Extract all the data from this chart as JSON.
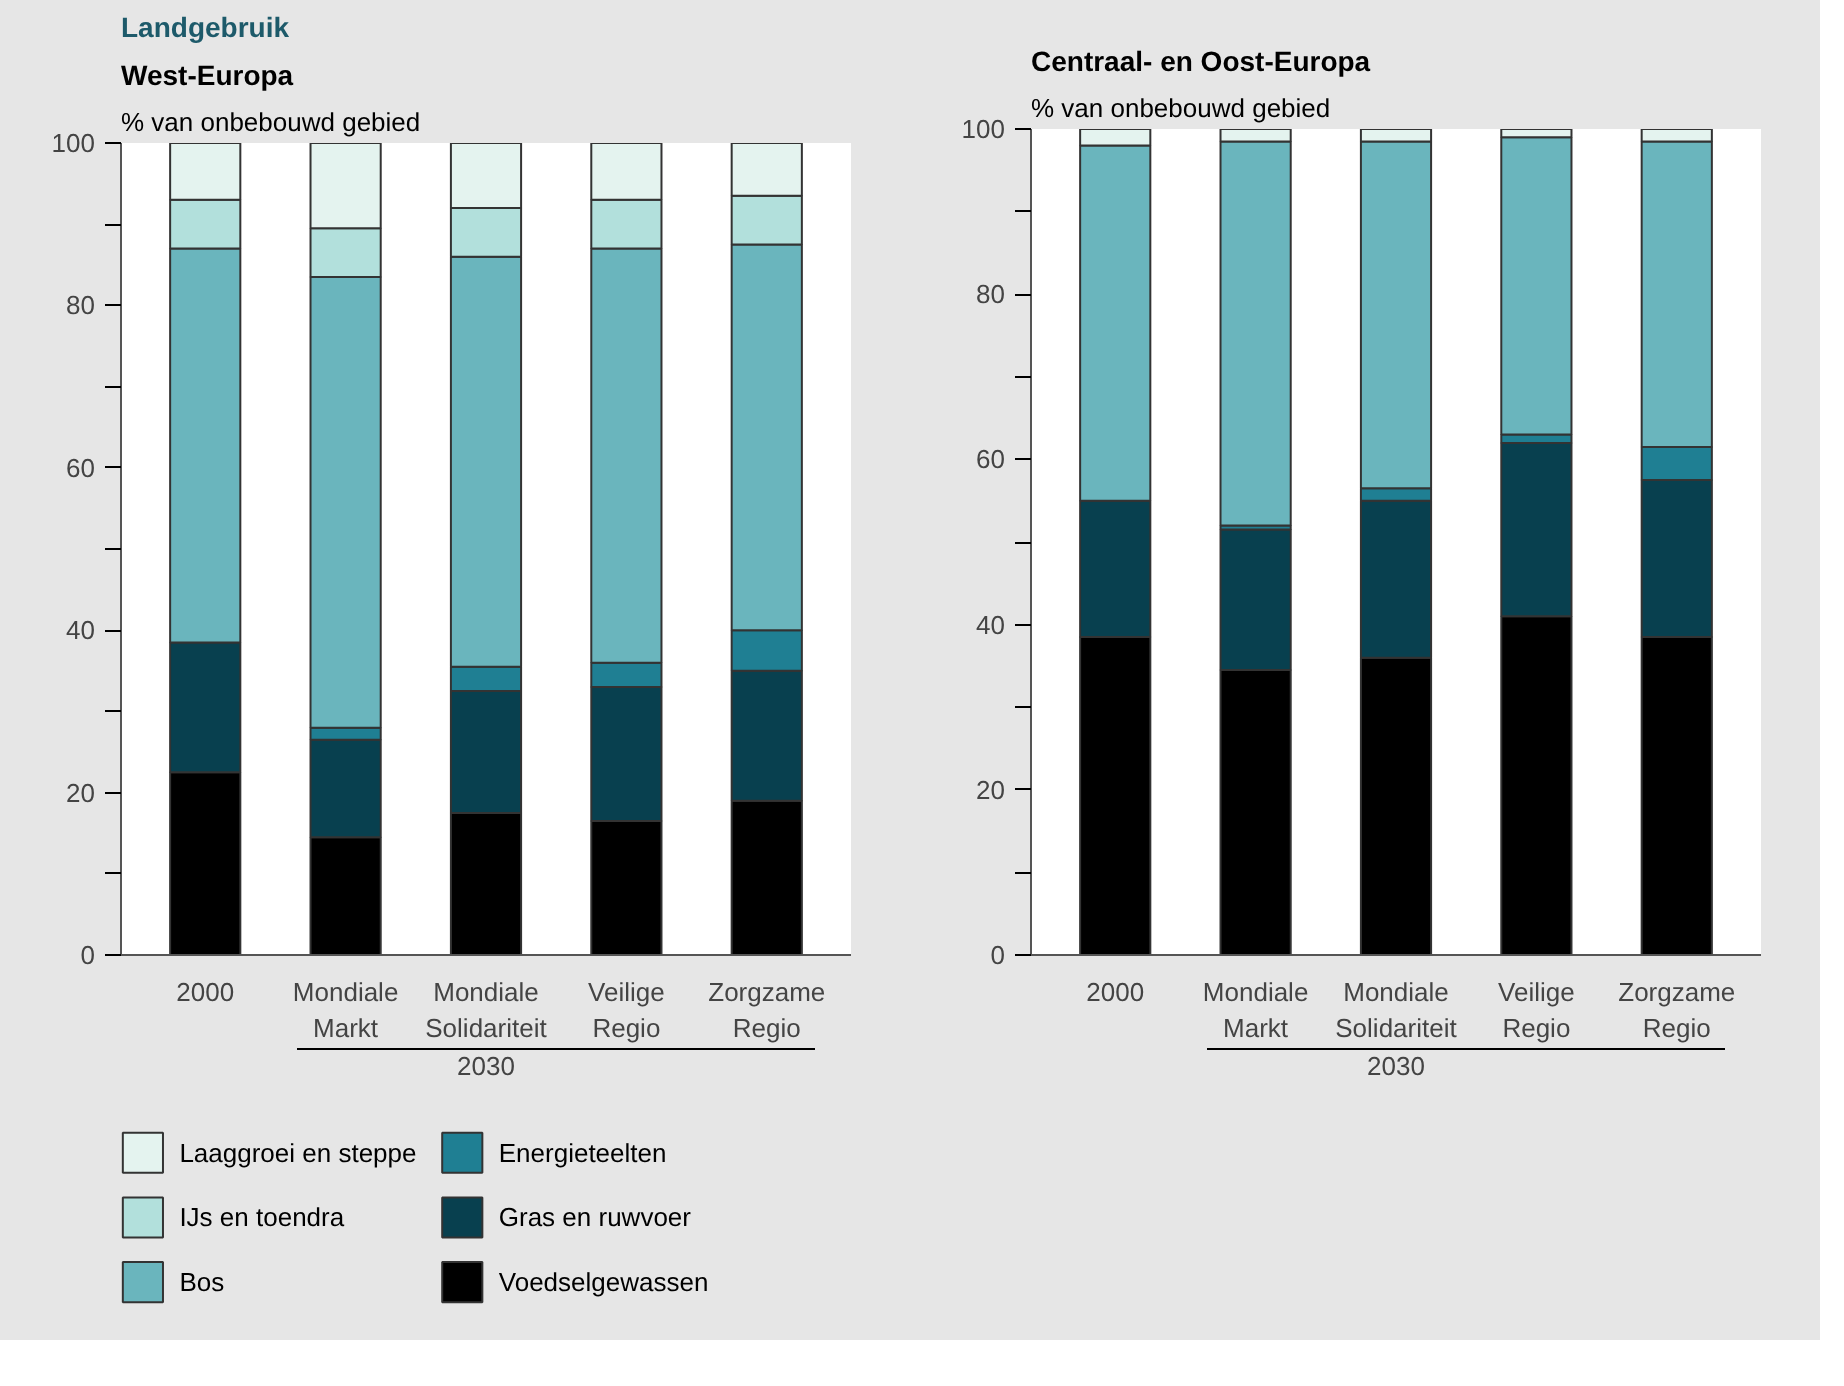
{
  "chart_data": [
    {
      "type": "bar",
      "stacked": true,
      "title": "Landgebruik",
      "subtitle": "West-Europa",
      "ylabel": "% van onbebouwd gebied",
      "categories": [
        "2000",
        "Mondiale\nMarkt",
        "Mondiale\nSolidariteit",
        "Veilige\nRegio",
        "Zorgzame\nRegio"
      ],
      "annotations": [
        "2030"
      ],
      "ylim": [
        0,
        100
      ],
      "yticks": [
        0,
        {
          "value": 10,
          "label": null
        },
        20,
        {
          "value": 30,
          "label": null
        },
        40,
        {
          "value": 50,
          "label": null
        },
        60,
        {
          "value": 70,
          "label": null
        },
        80,
        {
          "value": 90,
          "label": null
        },
        100
      ],
      "legend": "bottom",
      "series": [
        {
          "name": "Voedselgewassen",
          "color": "#000000",
          "values": [
            22.5,
            14.5,
            17.5,
            16.5,
            19
          ]
        },
        {
          "name": "Gras en ruwvoer",
          "color": "#08404f",
          "values": [
            16,
            12,
            15,
            16.5,
            16
          ]
        },
        {
          "name": "Energieteelten",
          "color": "#1f7f93",
          "values": [
            0,
            1.5,
            3,
            3,
            5
          ]
        },
        {
          "name": "Bos",
          "color": "#6ab5bd",
          "values": [
            48.5,
            55.5,
            50.5,
            51,
            47.5
          ]
        },
        {
          "name": "IJs en toendra",
          "color": "#b2e0dc",
          "values": [
            6,
            6,
            6,
            6,
            6
          ]
        },
        {
          "name": "Laaggroei en steppe",
          "color": "#e4f3ef",
          "values": [
            7,
            10.5,
            8,
            7,
            6.5
          ]
        }
      ]
    },
    {
      "type": "bar",
      "stacked": true,
      "subtitle": "Centraal- en Oost-Europa",
      "ylabel": "% van onbebouwd gebied",
      "categories": [
        "2000",
        "Mondiale\nMarkt",
        "Mondiale\nSolidariteit",
        "Veilige\nRegio",
        "Zorgzame\nRegio"
      ],
      "annotations": [
        "2030"
      ],
      "ylim": [
        0,
        100
      ],
      "yticks": [
        0,
        {
          "value": 10,
          "label": null
        },
        20,
        {
          "value": 30,
          "label": null
        },
        40,
        {
          "value": 50,
          "label": null
        },
        60,
        {
          "value": 70,
          "label": null
        },
        80,
        {
          "value": 90,
          "label": null
        },
        100
      ],
      "series": [
        {
          "color": "#000000",
          "values": [
            38.5,
            34.5,
            36,
            41,
            38.5
          ]
        },
        {
          "color": "#08404f",
          "values": [
            16.5,
            17,
            19,
            21,
            19
          ]
        },
        {
          "color": "#1f7f93",
          "values": [
            0,
            0.5,
            1.5,
            1,
            4
          ]
        },
        {
          "color": "#6ab5bd",
          "values": [
            43,
            46.5,
            42,
            36,
            37
          ]
        },
        {
          "color": "#b2e0dc",
          "values": [
            0,
            0,
            0,
            0,
            0
          ]
        },
        {
          "color": "#e4f3ef",
          "values": [
            2,
            1.5,
            1.5,
            1,
            1.5
          ]
        }
      ]
    }
  ]
}
